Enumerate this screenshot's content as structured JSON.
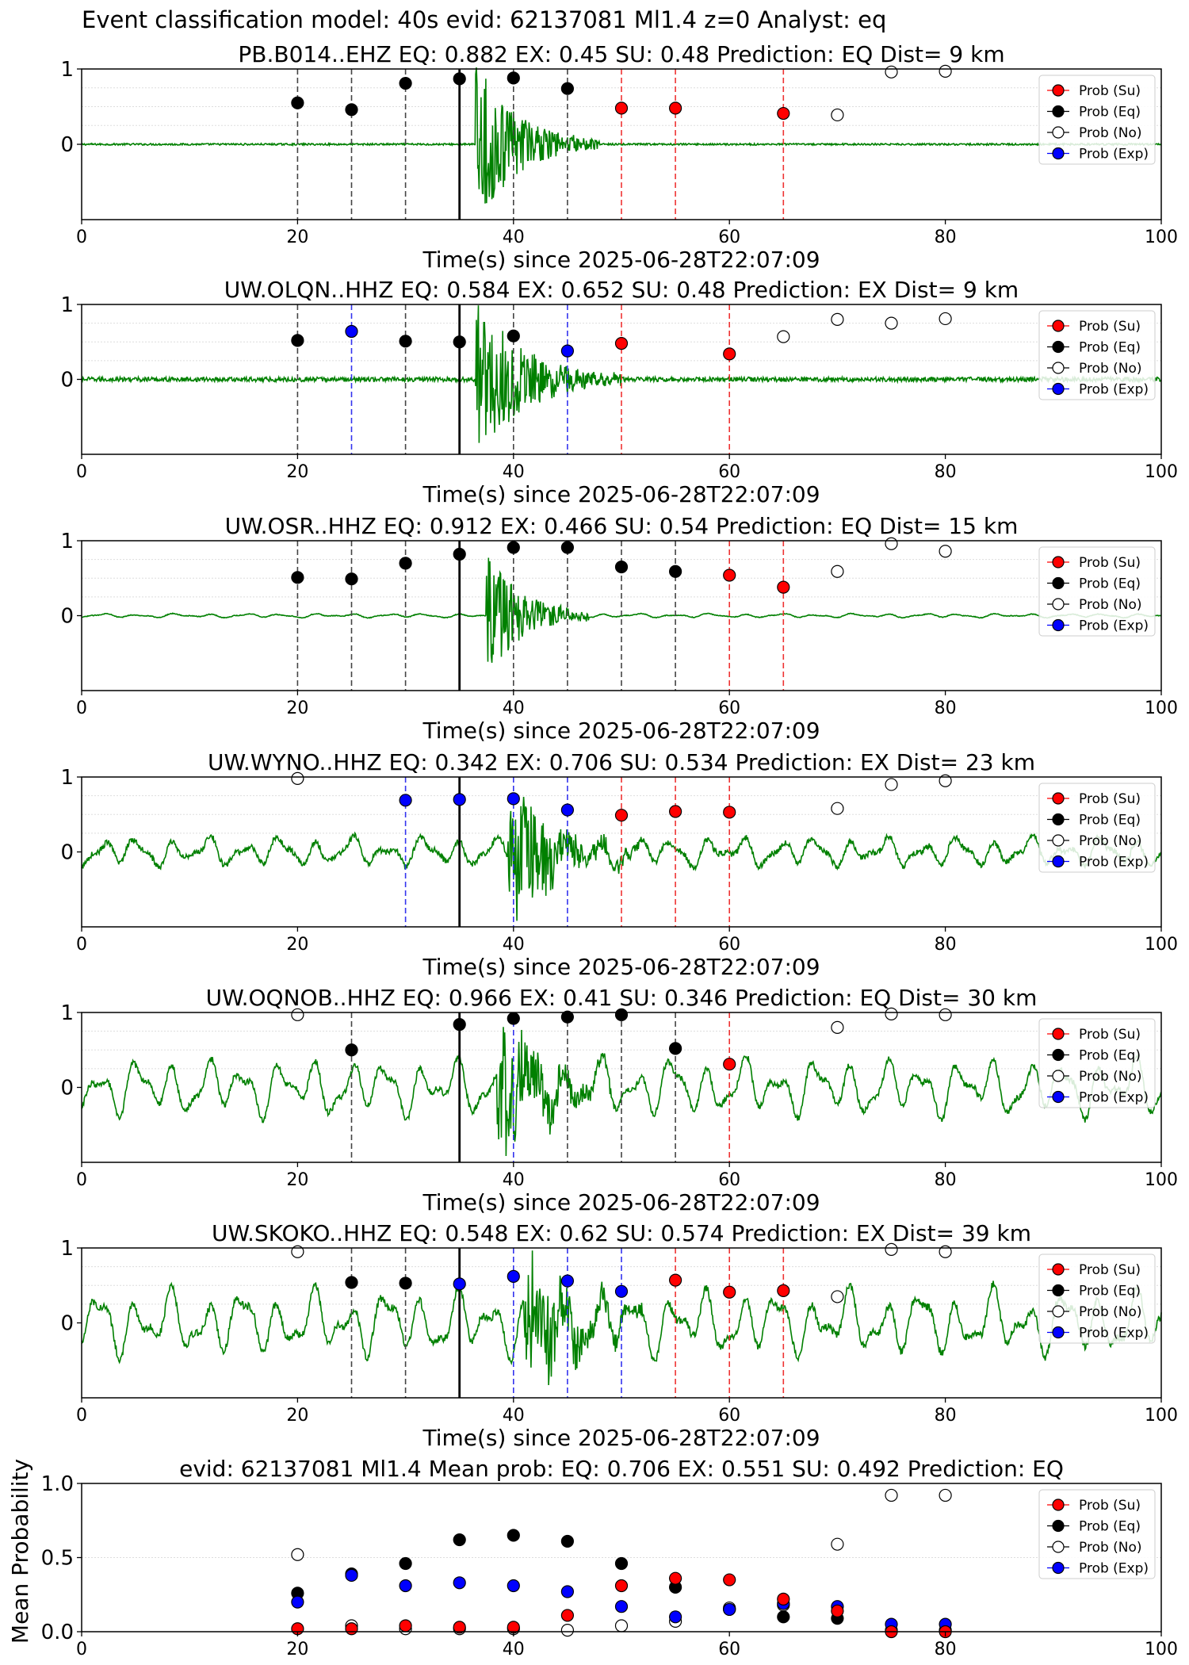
{
  "figure_title": "Event classification model: 40s evid: 62137081 Ml1.4 z=0 Analyst: eq",
  "legend_labels": [
    "Prob (Su)",
    "Prob (Eq)",
    "Prob (No)",
    "Prob (Exp)"
  ],
  "colors": {
    "su": "#ff0000",
    "eq": "#000000",
    "no": "#ffffff",
    "exp": "#0000ff",
    "trace": "#008000"
  },
  "chart_data": [
    {
      "type": "scatter",
      "title": "PB.B014..EHZ   EQ: 0.882  EX: 0.45  SU: 0.48   Prediction: EQ    Dist= 9 km",
      "xlabel": "Time(s) since 2025-06-28T22:07:09",
      "xlim": [
        0,
        100
      ],
      "ylim": [
        -1,
        1
      ],
      "xticks": [
        "0",
        "20",
        "40",
        "60",
        "80",
        "100"
      ],
      "yticks": [
        "1",
        "0"
      ],
      "origin_line": 35,
      "vlines": [
        {
          "x": 20,
          "c": "eq"
        },
        {
          "x": 25,
          "c": "eq"
        },
        {
          "x": 30,
          "c": "eq"
        },
        {
          "x": 40,
          "c": "eq"
        },
        {
          "x": 45,
          "c": "eq"
        },
        {
          "x": 50,
          "c": "su"
        },
        {
          "x": 55,
          "c": "su"
        },
        {
          "x": 65,
          "c": "su"
        }
      ],
      "points": [
        {
          "x": 20,
          "y": 0.55,
          "c": "eq"
        },
        {
          "x": 25,
          "y": 0.46,
          "c": "eq"
        },
        {
          "x": 30,
          "y": 0.81,
          "c": "eq"
        },
        {
          "x": 35,
          "y": 0.87,
          "c": "eq"
        },
        {
          "x": 40,
          "y": 0.88,
          "c": "eq"
        },
        {
          "x": 45,
          "y": 0.74,
          "c": "eq"
        },
        {
          "x": 50,
          "y": 0.48,
          "c": "su"
        },
        {
          "x": 55,
          "y": 0.48,
          "c": "su"
        },
        {
          "x": 65,
          "y": 0.41,
          "c": "su"
        },
        {
          "x": 70,
          "y": 0.39,
          "c": "no"
        },
        {
          "x": 75,
          "y": 0.96,
          "c": "no"
        },
        {
          "x": 80,
          "y": 0.97,
          "c": "no"
        }
      ]
    },
    {
      "type": "scatter",
      "title": "UW.OLQN..HHZ   EQ: 0.584  EX: 0.652  SU: 0.48   Prediction: EX    Dist= 9 km",
      "xlabel": "Time(s) since 2025-06-28T22:07:09",
      "xlim": [
        0,
        100
      ],
      "ylim": [
        -1,
        1
      ],
      "xticks": [
        "0",
        "20",
        "40",
        "60",
        "80",
        "100"
      ],
      "yticks": [
        "1",
        "0"
      ],
      "origin_line": 35,
      "vlines": [
        {
          "x": 20,
          "c": "eq"
        },
        {
          "x": 25,
          "c": "exp"
        },
        {
          "x": 30,
          "c": "eq"
        },
        {
          "x": 40,
          "c": "eq"
        },
        {
          "x": 45,
          "c": "exp"
        },
        {
          "x": 50,
          "c": "su"
        },
        {
          "x": 60,
          "c": "su"
        }
      ],
      "points": [
        {
          "x": 20,
          "y": 0.52,
          "c": "eq"
        },
        {
          "x": 25,
          "y": 0.64,
          "c": "exp"
        },
        {
          "x": 30,
          "y": 0.51,
          "c": "eq"
        },
        {
          "x": 35,
          "y": 0.5,
          "c": "eq"
        },
        {
          "x": 40,
          "y": 0.58,
          "c": "eq"
        },
        {
          "x": 45,
          "y": 0.38,
          "c": "exp"
        },
        {
          "x": 50,
          "y": 0.48,
          "c": "su"
        },
        {
          "x": 60,
          "y": 0.34,
          "c": "su"
        },
        {
          "x": 65,
          "y": 0.57,
          "c": "no"
        },
        {
          "x": 70,
          "y": 0.8,
          "c": "no"
        },
        {
          "x": 75,
          "y": 0.75,
          "c": "no"
        },
        {
          "x": 80,
          "y": 0.81,
          "c": "no"
        }
      ]
    },
    {
      "type": "scatter",
      "title": "UW.OSR..HHZ   EQ: 0.912  EX: 0.466  SU: 0.54   Prediction: EQ    Dist= 15 km",
      "xlabel": "Time(s) since 2025-06-28T22:07:09",
      "xlim": [
        0,
        100
      ],
      "ylim": [
        -1,
        1
      ],
      "xticks": [
        "0",
        "20",
        "40",
        "60",
        "80",
        "100"
      ],
      "yticks": [
        "1",
        "0"
      ],
      "origin_line": 35,
      "vlines": [
        {
          "x": 20,
          "c": "eq"
        },
        {
          "x": 25,
          "c": "eq"
        },
        {
          "x": 30,
          "c": "eq"
        },
        {
          "x": 40,
          "c": "eq"
        },
        {
          "x": 45,
          "c": "eq"
        },
        {
          "x": 50,
          "c": "eq"
        },
        {
          "x": 55,
          "c": "eq"
        },
        {
          "x": 60,
          "c": "su"
        },
        {
          "x": 65,
          "c": "su"
        }
      ],
      "points": [
        {
          "x": 20,
          "y": 0.51,
          "c": "eq"
        },
        {
          "x": 25,
          "y": 0.49,
          "c": "eq"
        },
        {
          "x": 30,
          "y": 0.7,
          "c": "eq"
        },
        {
          "x": 35,
          "y": 0.82,
          "c": "eq"
        },
        {
          "x": 40,
          "y": 0.91,
          "c": "eq"
        },
        {
          "x": 45,
          "y": 0.91,
          "c": "eq"
        },
        {
          "x": 50,
          "y": 0.65,
          "c": "eq"
        },
        {
          "x": 55,
          "y": 0.59,
          "c": "eq"
        },
        {
          "x": 60,
          "y": 0.54,
          "c": "su"
        },
        {
          "x": 65,
          "y": 0.38,
          "c": "su"
        },
        {
          "x": 70,
          "y": 0.59,
          "c": "no"
        },
        {
          "x": 75,
          "y": 0.96,
          "c": "no"
        },
        {
          "x": 80,
          "y": 0.86,
          "c": "no"
        }
      ]
    },
    {
      "type": "scatter",
      "title": "UW.WYNO..HHZ   EQ: 0.342  EX: 0.706  SU: 0.534   Prediction: EX    Dist= 23 km",
      "xlabel": "Time(s) since 2025-06-28T22:07:09",
      "xlim": [
        0,
        100
      ],
      "ylim": [
        -1,
        1
      ],
      "xticks": [
        "0",
        "20",
        "40",
        "60",
        "80",
        "100"
      ],
      "yticks": [
        "1",
        "0"
      ],
      "origin_line": 35,
      "vlines": [
        {
          "x": 30,
          "c": "exp"
        },
        {
          "x": 40,
          "c": "exp"
        },
        {
          "x": 45,
          "c": "exp"
        },
        {
          "x": 50,
          "c": "su"
        },
        {
          "x": 55,
          "c": "su"
        },
        {
          "x": 60,
          "c": "su"
        }
      ],
      "points": [
        {
          "x": 20,
          "y": 0.98,
          "c": "no"
        },
        {
          "x": 30,
          "y": 0.69,
          "c": "exp"
        },
        {
          "x": 35,
          "y": 0.7,
          "c": "exp"
        },
        {
          "x": 40,
          "y": 0.71,
          "c": "exp"
        },
        {
          "x": 45,
          "y": 0.56,
          "c": "exp"
        },
        {
          "x": 50,
          "y": 0.49,
          "c": "su"
        },
        {
          "x": 55,
          "y": 0.54,
          "c": "su"
        },
        {
          "x": 60,
          "y": 0.53,
          "c": "su"
        },
        {
          "x": 70,
          "y": 0.58,
          "c": "no"
        },
        {
          "x": 75,
          "y": 0.9,
          "c": "no"
        },
        {
          "x": 80,
          "y": 0.95,
          "c": "no"
        }
      ]
    },
    {
      "type": "scatter",
      "title": "UW.OQNOB..HHZ   EQ: 0.966  EX: 0.41  SU: 0.346   Prediction: EQ    Dist= 30 km",
      "xlabel": "Time(s) since 2025-06-28T22:07:09",
      "xlim": [
        0,
        100
      ],
      "ylim": [
        -1,
        1
      ],
      "xticks": [
        "0",
        "20",
        "40",
        "60",
        "80",
        "100"
      ],
      "yticks": [
        "1",
        "0"
      ],
      "origin_line": 35,
      "vlines": [
        {
          "x": 25,
          "c": "eq"
        },
        {
          "x": 40,
          "c": "exp"
        },
        {
          "x": 45,
          "c": "eq"
        },
        {
          "x": 50,
          "c": "eq"
        },
        {
          "x": 55,
          "c": "eq"
        },
        {
          "x": 60,
          "c": "su"
        }
      ],
      "points": [
        {
          "x": 20,
          "y": 0.97,
          "c": "no"
        },
        {
          "x": 25,
          "y": 0.5,
          "c": "eq"
        },
        {
          "x": 35,
          "y": 0.84,
          "c": "eq"
        },
        {
          "x": 40,
          "y": 0.92,
          "c": "eq"
        },
        {
          "x": 45,
          "y": 0.94,
          "c": "eq"
        },
        {
          "x": 50,
          "y": 0.97,
          "c": "eq"
        },
        {
          "x": 55,
          "y": 0.52,
          "c": "eq"
        },
        {
          "x": 60,
          "y": 0.31,
          "c": "su"
        },
        {
          "x": 70,
          "y": 0.8,
          "c": "no"
        },
        {
          "x": 75,
          "y": 0.98,
          "c": "no"
        },
        {
          "x": 80,
          "y": 0.97,
          "c": "no"
        }
      ]
    },
    {
      "type": "scatter",
      "title": "UW.SKOKO..HHZ   EQ: 0.548  EX: 0.62  SU: 0.574   Prediction: EX    Dist= 39 km",
      "xlabel": "Time(s) since 2025-06-28T22:07:09",
      "xlim": [
        0,
        100
      ],
      "ylim": [
        -1,
        1
      ],
      "xticks": [
        "0",
        "20",
        "40",
        "60",
        "80",
        "100"
      ],
      "yticks": [
        "1",
        "0"
      ],
      "origin_line": 35,
      "vlines": [
        {
          "x": 25,
          "c": "eq"
        },
        {
          "x": 30,
          "c": "eq"
        },
        {
          "x": 40,
          "c": "exp"
        },
        {
          "x": 45,
          "c": "exp"
        },
        {
          "x": 50,
          "c": "exp"
        },
        {
          "x": 55,
          "c": "su"
        },
        {
          "x": 60,
          "c": "su"
        },
        {
          "x": 65,
          "c": "su"
        }
      ],
      "points": [
        {
          "x": 20,
          "y": 0.95,
          "c": "no"
        },
        {
          "x": 25,
          "y": 0.54,
          "c": "eq"
        },
        {
          "x": 30,
          "y": 0.53,
          "c": "eq"
        },
        {
          "x": 35,
          "y": 0.52,
          "c": "exp"
        },
        {
          "x": 40,
          "y": 0.62,
          "c": "exp"
        },
        {
          "x": 45,
          "y": 0.56,
          "c": "exp"
        },
        {
          "x": 50,
          "y": 0.42,
          "c": "exp"
        },
        {
          "x": 55,
          "y": 0.57,
          "c": "su"
        },
        {
          "x": 60,
          "y": 0.41,
          "c": "su"
        },
        {
          "x": 65,
          "y": 0.43,
          "c": "su"
        },
        {
          "x": 70,
          "y": 0.35,
          "c": "no"
        },
        {
          "x": 75,
          "y": 0.98,
          "c": "no"
        },
        {
          "x": 80,
          "y": 0.95,
          "c": "no"
        }
      ]
    },
    {
      "type": "scatter",
      "title": "evid: 62137081  Ml1.4   Mean prob:   EQ: 0.706  EX: 0.551  SU: 0.492   Prediction: EQ",
      "ylabel": "Mean Probability",
      "xlim": [
        0,
        100
      ],
      "ylim": [
        0,
        1
      ],
      "xticks": [
        "0",
        "20",
        "40",
        "60",
        "80",
        "100"
      ],
      "yticks": [
        "1.0",
        "0.5",
        "0.0"
      ],
      "points": [
        {
          "x": 20,
          "y": 0.52,
          "c": "no"
        },
        {
          "x": 20,
          "y": 0.26,
          "c": "eq"
        },
        {
          "x": 20,
          "y": 0.2,
          "c": "exp"
        },
        {
          "x": 20,
          "y": 0.02,
          "c": "su"
        },
        {
          "x": 25,
          "y": 0.04,
          "c": "no"
        },
        {
          "x": 25,
          "y": 0.39,
          "c": "eq"
        },
        {
          "x": 25,
          "y": 0.38,
          "c": "exp"
        },
        {
          "x": 25,
          "y": 0.02,
          "c": "su"
        },
        {
          "x": 30,
          "y": 0.02,
          "c": "no"
        },
        {
          "x": 30,
          "y": 0.46,
          "c": "eq"
        },
        {
          "x": 30,
          "y": 0.31,
          "c": "exp"
        },
        {
          "x": 30,
          "y": 0.04,
          "c": "su"
        },
        {
          "x": 35,
          "y": 0.02,
          "c": "no"
        },
        {
          "x": 35,
          "y": 0.62,
          "c": "eq"
        },
        {
          "x": 35,
          "y": 0.33,
          "c": "exp"
        },
        {
          "x": 35,
          "y": 0.03,
          "c": "su"
        },
        {
          "x": 40,
          "y": 0.02,
          "c": "no"
        },
        {
          "x": 40,
          "y": 0.65,
          "c": "eq"
        },
        {
          "x": 40,
          "y": 0.31,
          "c": "exp"
        },
        {
          "x": 40,
          "y": 0.03,
          "c": "su"
        },
        {
          "x": 45,
          "y": 0.01,
          "c": "no"
        },
        {
          "x": 45,
          "y": 0.61,
          "c": "eq"
        },
        {
          "x": 45,
          "y": 0.27,
          "c": "exp"
        },
        {
          "x": 45,
          "y": 0.11,
          "c": "su"
        },
        {
          "x": 50,
          "y": 0.04,
          "c": "no"
        },
        {
          "x": 50,
          "y": 0.46,
          "c": "eq"
        },
        {
          "x": 50,
          "y": 0.17,
          "c": "exp"
        },
        {
          "x": 50,
          "y": 0.31,
          "c": "su"
        },
        {
          "x": 55,
          "y": 0.07,
          "c": "no"
        },
        {
          "x": 55,
          "y": 0.3,
          "c": "eq"
        },
        {
          "x": 55,
          "y": 0.1,
          "c": "exp"
        },
        {
          "x": 55,
          "y": 0.36,
          "c": "su"
        },
        {
          "x": 60,
          "y": 0.16,
          "c": "no"
        },
        {
          "x": 60,
          "y": 0.15,
          "c": "eq"
        },
        {
          "x": 60,
          "y": 0.15,
          "c": "exp"
        },
        {
          "x": 60,
          "y": 0.35,
          "c": "su"
        },
        {
          "x": 65,
          "y": 0.18,
          "c": "no"
        },
        {
          "x": 65,
          "y": 0.1,
          "c": "eq"
        },
        {
          "x": 65,
          "y": 0.19,
          "c": "exp"
        },
        {
          "x": 65,
          "y": 0.22,
          "c": "su"
        },
        {
          "x": 70,
          "y": 0.59,
          "c": "no"
        },
        {
          "x": 70,
          "y": 0.09,
          "c": "eq"
        },
        {
          "x": 70,
          "y": 0.17,
          "c": "exp"
        },
        {
          "x": 70,
          "y": 0.14,
          "c": "su"
        },
        {
          "x": 75,
          "y": 0.92,
          "c": "no"
        },
        {
          "x": 75,
          "y": 0.01,
          "c": "eq"
        },
        {
          "x": 75,
          "y": 0.05,
          "c": "exp"
        },
        {
          "x": 75,
          "y": 0.0,
          "c": "su"
        },
        {
          "x": 80,
          "y": 0.92,
          "c": "no"
        },
        {
          "x": 80,
          "y": 0.01,
          "c": "eq"
        },
        {
          "x": 80,
          "y": 0.05,
          "c": "exp"
        },
        {
          "x": 80,
          "y": 0.0,
          "c": "su"
        }
      ]
    }
  ]
}
